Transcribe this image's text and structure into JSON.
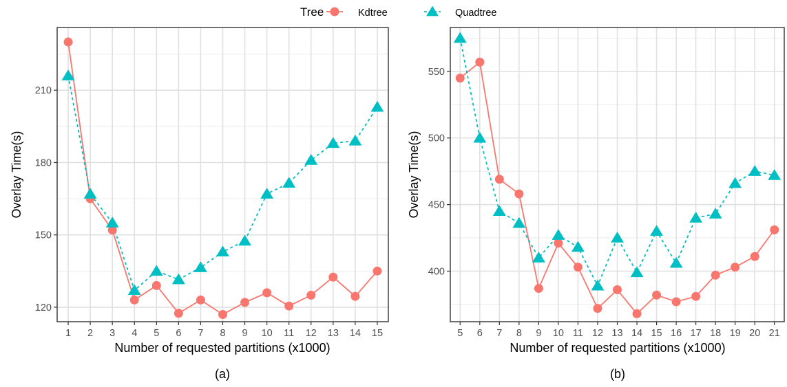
{
  "legend": {
    "title": "Tree",
    "items": [
      {
        "label": "Kdtree",
        "color": "#F8766D",
        "shape": "circle",
        "line": "solid"
      },
      {
        "label": "Quadtree",
        "color": "#00BFC4",
        "shape": "triangle",
        "line": "dashed"
      }
    ],
    "placement": "top"
  },
  "chart_data": [
    {
      "type": "line",
      "caption": "(a)",
      "xlabel": "Number of requested partitions (x1000)",
      "ylabel": "Overlay Time(s)",
      "x": [
        1,
        2,
        3,
        4,
        5,
        6,
        7,
        8,
        9,
        10,
        11,
        12,
        13,
        14,
        15
      ],
      "xticks": [
        "1",
        "2",
        "3",
        "4",
        "5",
        "6",
        "7",
        "8",
        "9",
        "10",
        "11",
        "12",
        "13",
        "14",
        "15"
      ],
      "yticks": [
        120,
        150,
        180,
        210
      ],
      "ylim": [
        114,
        236
      ],
      "grid": true,
      "series": [
        {
          "name": "Kdtree",
          "values": [
            230,
            165,
            152,
            123,
            129,
            117.5,
            123,
            117,
            122,
            126,
            120.5,
            125,
            132.5,
            124.5,
            135
          ]
        },
        {
          "name": "Quadtree",
          "values": [
            216,
            167,
            155,
            127,
            135,
            131.5,
            136.5,
            143,
            147.5,
            167,
            171.5,
            181,
            188,
            189,
            203
          ]
        }
      ]
    },
    {
      "type": "line",
      "caption": "(b)",
      "xlabel": "Number of requested partitions (x1000)",
      "ylabel": "Overlay Time(s)",
      "x": [
        5,
        6,
        7,
        8,
        9,
        10,
        11,
        12,
        13,
        14,
        15,
        16,
        17,
        18,
        19,
        20,
        21
      ],
      "xticks": [
        "5",
        "6",
        "7",
        "8",
        "9",
        "10",
        "11",
        "12",
        "13",
        "14",
        "15",
        "16",
        "17",
        "18",
        "19",
        "20",
        "21"
      ],
      "yticks": [
        400,
        450,
        500,
        550
      ],
      "ylim": [
        362,
        583
      ],
      "grid": true,
      "series": [
        {
          "name": "Kdtree",
          "values": [
            545,
            557,
            469,
            458,
            387,
            421,
            403,
            372,
            386,
            368,
            382,
            377,
            381,
            397,
            403,
            411,
            431
          ]
        },
        {
          "name": "Quadtree",
          "values": [
            575,
            500,
            445,
            436,
            410,
            427,
            418,
            389,
            425,
            399,
            430,
            406,
            440,
            443,
            466,
            475,
            472
          ]
        }
      ]
    }
  ]
}
